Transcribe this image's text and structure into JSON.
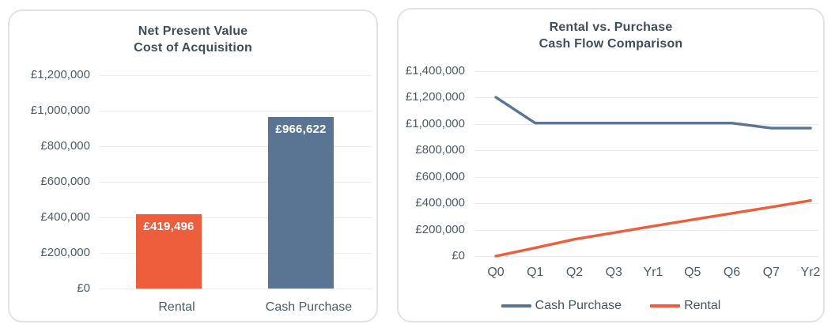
{
  "accent_colors": {
    "orange": "#ee5d3c",
    "blue": "#5a7593",
    "title_text": "#3f4e5c",
    "axis_text": "#4c5b68",
    "gridline": "#ececec"
  },
  "chart_data": [
    {
      "type": "bar",
      "title": "Net Present Value Cost of Acquisition",
      "title_lines": [
        "Net Present Value",
        "Cost of Acquisition"
      ],
      "categories": [
        "Rental",
        "Cash Purchase"
      ],
      "values": [
        419496,
        966622
      ],
      "value_labels": [
        "£419,496",
        "£966,622"
      ],
      "bar_colors": [
        "#ee5d3c",
        "#5a7593"
      ],
      "xlabel": "",
      "ylabel": "",
      "ylim": [
        0,
        1200000
      ],
      "ytick_interval": 200000,
      "ytick_labels": [
        "£0",
        "£200,000",
        "£400,000",
        "£600,000",
        "£800,000",
        "£1,000,000",
        "£1,200,000"
      ],
      "grid": "horizontal",
      "data_labels": "inside-top, white bold"
    },
    {
      "type": "line",
      "title": "Rental vs. Purchase Cash Flow Comparison",
      "title_lines": [
        "Rental vs. Purchase",
        "Cash Flow Comparison"
      ],
      "categories": [
        "Q0",
        "Q1",
        "Q2",
        "Q3",
        "Yr1",
        "Q5",
        "Q6",
        "Q7",
        "Yr2"
      ],
      "series": [
        {
          "name": "Cash Purchase",
          "color": "#5a7593",
          "values": [
            1200000,
            1005000,
            1005000,
            1005000,
            1005000,
            1005000,
            1005000,
            966622,
            966622
          ]
        },
        {
          "name": "Rental",
          "color": "#ee5d3c",
          "values": [
            0,
            62000,
            127000,
            177000,
            226000,
            275000,
            323000,
            371000,
            419496
          ]
        }
      ],
      "xlabel": "",
      "ylabel": "",
      "ylim": [
        0,
        1400000
      ],
      "ytick_interval": 200000,
      "ytick_labels": [
        "£0",
        "£200,000",
        "£400,000",
        "£600,000",
        "£800,000",
        "£1,000,000",
        "£1,200,000",
        "£1,400,000"
      ],
      "grid": "horizontal",
      "legend_position": "bottom"
    }
  ]
}
